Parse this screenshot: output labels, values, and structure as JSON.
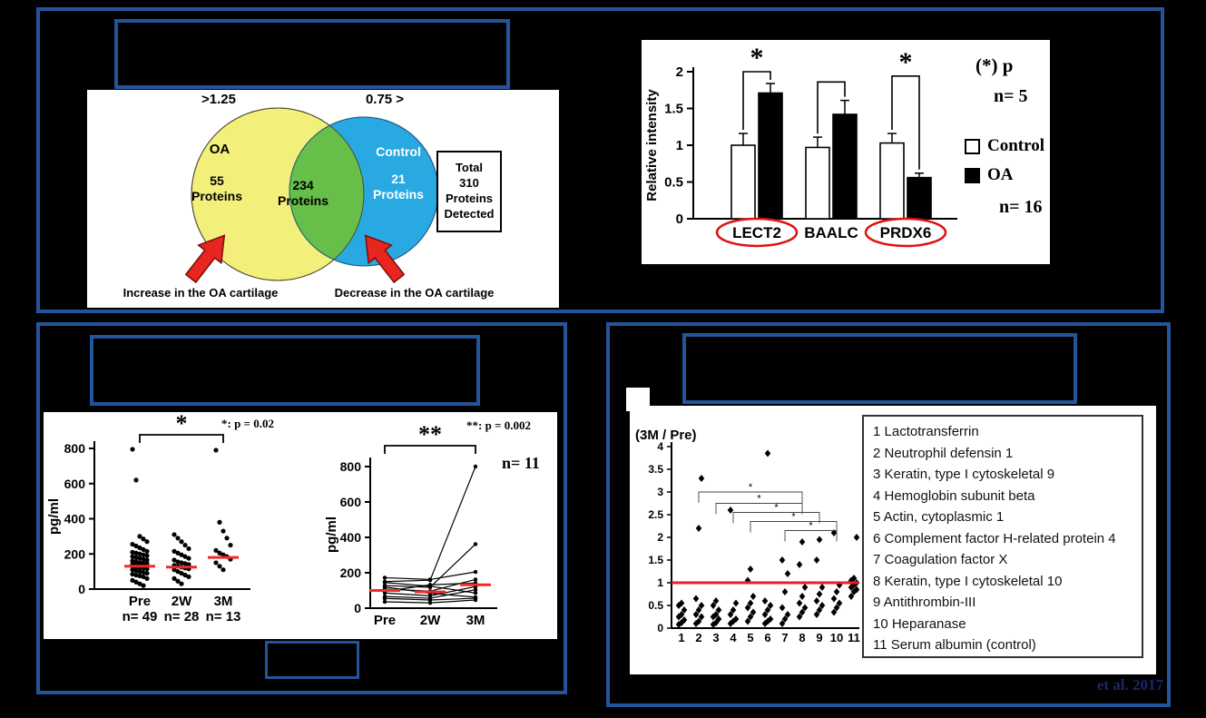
{
  "slide": {
    "bg": "#000000",
    "border_color": "#24549B"
  },
  "top_panel": {
    "title": "",
    "venn": {
      "left_threshold": ">1.25",
      "right_threshold": "0.75 >",
      "left_circle_label": "OA",
      "left_circle_count": "55\nProteins",
      "left_circle_color": "#F3EF7B",
      "overlap_count": "234\nProteins",
      "overlap_color": "#67BE48",
      "right_circle_label": "Control",
      "right_circle_count": "21\nProteins",
      "right_circle_color": "#29A9E1",
      "total_box": "Total\n310\nProteins\nDetected",
      "left_caption": "Increase in the OA cartilage",
      "right_caption": "Decrease in the OA cartilage",
      "arrow_color": "#E8251F"
    },
    "bar_annotations": {
      "p_note": "(*) p",
      "n_control": "n= 5",
      "n_oa": "n= 16"
    }
  },
  "bottom_left": {
    "title": "",
    "p_note_left": "*:  p = 0.02",
    "p_note_right": "**:  p = 0.002",
    "n_label": "n= 11"
  },
  "bottom_right": {
    "title": "",
    "citation": "et al. 2017"
  },
  "chart_data": [
    {
      "type": "bar",
      "ylabel": "Relative intensity",
      "ylim": [
        0,
        2
      ],
      "yticks": [
        0,
        0.5,
        1,
        1.5,
        2
      ],
      "categories": [
        "LECT2",
        "BAALC",
        "PRDX6"
      ],
      "series": [
        {
          "name": "Control",
          "color": "#ffffff",
          "values": [
            1.0,
            0.97,
            1.03
          ],
          "errors": [
            0.16,
            0.14,
            0.13
          ]
        },
        {
          "name": "OA",
          "color": "#000000",
          "values": [
            1.71,
            1.42,
            0.56
          ],
          "errors": [
            0.13,
            0.19,
            0.06
          ]
        }
      ],
      "sig_labels": [
        "*",
        "",
        "*"
      ],
      "bracket_heights": [
        2.0,
        1.86,
        1.94
      ],
      "circled_categories": [
        "LECT2",
        "PRDX6"
      ],
      "circle_color": "#E01010",
      "legend": [
        "Control",
        "OA"
      ],
      "legend_position": "right"
    },
    {
      "type": "scatter",
      "ylabel": "pg/ml",
      "ylim": [
        0,
        800
      ],
      "yticks": [
        0,
        200,
        400,
        600,
        800
      ],
      "categories": [
        "Pre",
        "2W",
        "3M"
      ],
      "n_labels": [
        "n= 49",
        "n= 28",
        "n= 13"
      ],
      "medians": [
        130,
        125,
        180
      ],
      "median_color": "#EE2B2B",
      "sig_label": "*",
      "sig_note": "*:  p = 0.02",
      "points": [
        [
          795,
          620,
          300,
          285,
          270,
          255,
          245,
          235,
          225,
          215,
          210,
          205,
          200,
          195,
          190,
          185,
          180,
          175,
          170,
          165,
          160,
          155,
          150,
          148,
          145,
          140,
          138,
          135,
          132,
          130,
          128,
          125,
          122,
          120,
          115,
          110,
          105,
          100,
          95,
          90,
          85,
          80,
          75,
          70,
          60,
          50,
          40,
          30,
          20
        ],
        [
          310,
          290,
          270,
          250,
          230,
          215,
          205,
          195,
          185,
          175,
          165,
          155,
          150,
          145,
          140,
          135,
          130,
          125,
          120,
          115,
          110,
          100,
          90,
          80,
          70,
          60,
          45,
          30
        ],
        [
          790,
          380,
          330,
          290,
          250,
          220,
          205,
          195,
          185,
          170,
          150,
          130,
          110
        ]
      ]
    },
    {
      "type": "line",
      "ylabel": "pg/ml",
      "ylim": [
        0,
        800
      ],
      "yticks": [
        0,
        200,
        400,
        600,
        800
      ],
      "categories": [
        "Pre",
        "2W",
        "3M"
      ],
      "n_label": "n= 11",
      "medians": [
        100,
        92,
        132
      ],
      "median_color": "#EE2B2B",
      "sig_label": "**",
      "sig_note": "**:  p = 0.002",
      "series": [
        [
          150,
          158,
          800
        ],
        [
          128,
          118,
          362
        ],
        [
          172,
          162,
          205
        ],
        [
          108,
          96,
          162
        ],
        [
          95,
          132,
          142
        ],
        [
          86,
          70,
          122
        ],
        [
          66,
          56,
          104
        ],
        [
          145,
          124,
          86
        ],
        [
          120,
          84,
          62
        ],
        [
          55,
          46,
          56
        ],
        [
          36,
          30,
          46
        ]
      ]
    },
    {
      "type": "scatter",
      "title": "(3M / Pre)",
      "ylim": [
        0,
        4
      ],
      "yticks": [
        0,
        0.5,
        1,
        1.5,
        2,
        2.5,
        3,
        3.5,
        4
      ],
      "categories": [
        "1",
        "2",
        "3",
        "4",
        "5",
        "6",
        "7",
        "8",
        "9",
        "10",
        "11"
      ],
      "reference_line": 1,
      "reference_color": "#ED1C24",
      "points": [
        [
          0.08,
          0.12,
          0.18,
          0.25,
          0.3,
          0.4,
          0.5,
          0.55
        ],
        [
          0.1,
          0.15,
          0.25,
          0.3,
          0.4,
          0.5,
          0.65,
          2.2,
          3.3
        ],
        [
          0.08,
          0.12,
          0.2,
          0.25,
          0.3,
          0.4,
          0.5,
          0.6
        ],
        [
          0.1,
          0.15,
          0.2,
          0.3,
          0.4,
          0.55,
          2.6
        ],
        [
          0.15,
          0.25,
          0.35,
          0.45,
          0.55,
          0.7,
          1.05,
          1.3
        ],
        [
          0.1,
          0.15,
          0.2,
          0.3,
          0.4,
          0.5,
          0.6,
          3.85
        ],
        [
          0.1,
          0.2,
          0.3,
          0.45,
          0.8,
          1.2,
          1.5
        ],
        [
          0.25,
          0.35,
          0.45,
          0.55,
          0.7,
          0.9,
          1.4,
          1.9
        ],
        [
          0.3,
          0.4,
          0.5,
          0.6,
          0.75,
          0.9,
          1.5,
          1.95
        ],
        [
          0.35,
          0.45,
          0.55,
          0.65,
          0.8,
          0.95,
          2.1
        ],
        [
          0.7,
          0.8,
          0.85,
          0.9,
          0.95,
          1.0,
          1.05,
          1.1,
          2.0
        ]
      ],
      "sig_brackets": [
        {
          "from": 2,
          "to": 8,
          "y": 3.0,
          "label": "*"
        },
        {
          "from": 3,
          "to": 8,
          "y": 2.75,
          "label": "*"
        },
        {
          "from": 4,
          "to": 9,
          "y": 2.55,
          "label": "*"
        },
        {
          "from": 5,
          "to": 10,
          "y": 2.35,
          "label": "*"
        },
        {
          "from": 7,
          "to": 10,
          "y": 2.15,
          "label": "*"
        }
      ],
      "legend_items": [
        "1 Lactotransferrin",
        "2 Neutrophil defensin 1",
        "3 Keratin, type I  cytoskeletal 9",
        "4 Hemoglobin subunit beta",
        "5 Actin, cytoplasmic 1",
        "6 Complement factor H-related protein 4",
        "7 Coagulation factor X",
        "8 Keratin, type I  cytoskeletal 10",
        "9 Antithrombin-III",
        "10 Heparanase",
        "11 Serum albumin (control)"
      ]
    }
  ]
}
